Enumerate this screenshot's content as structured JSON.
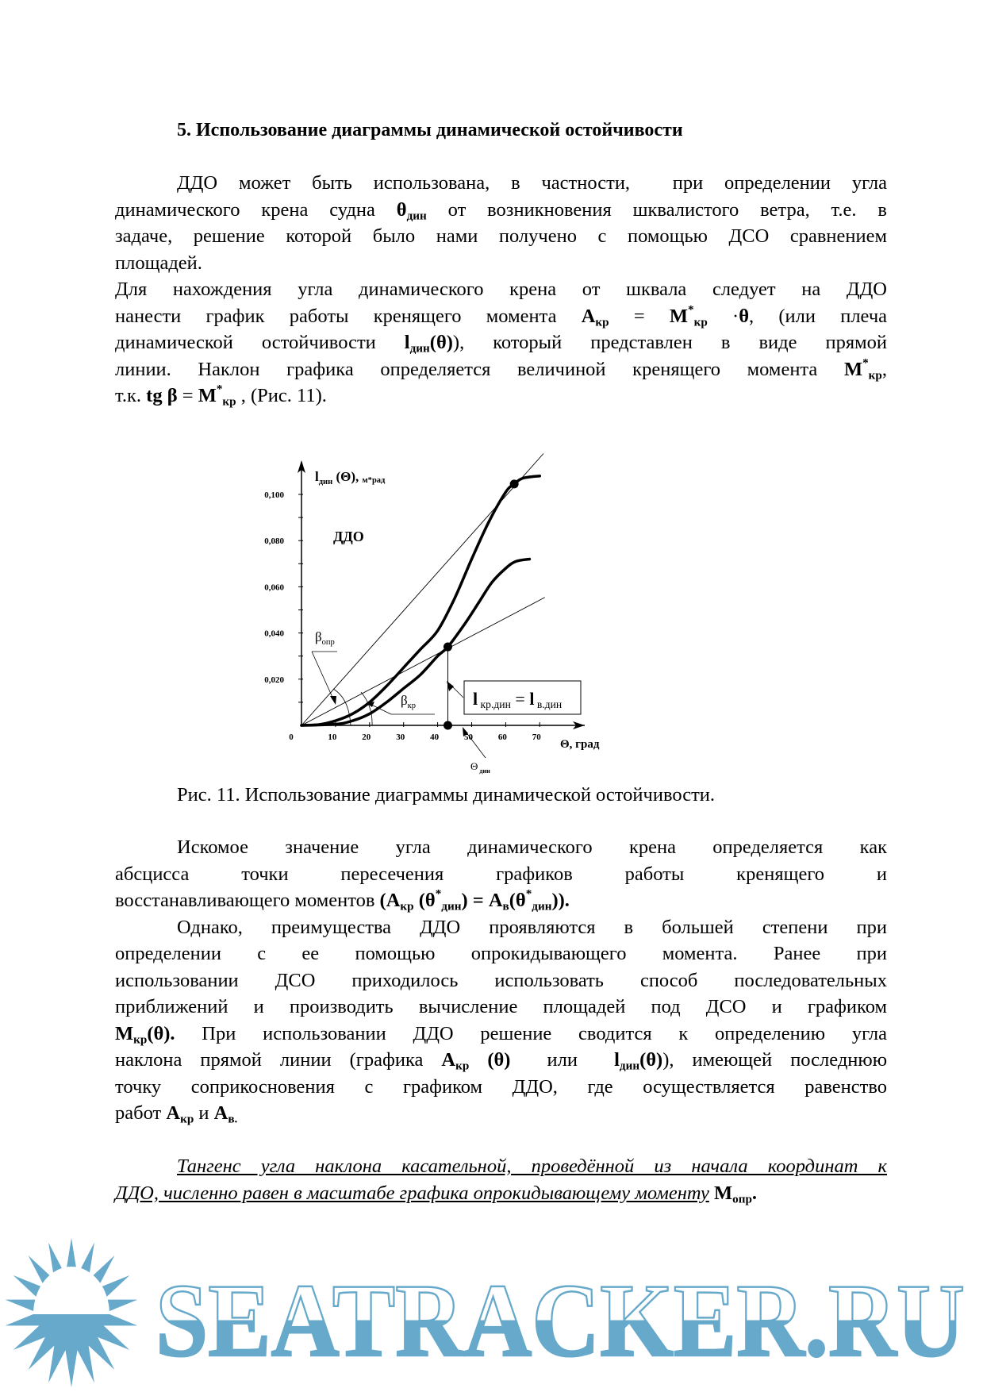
{
  "title": "5. Использование диаграммы динамической остойчивости",
  "paragraphs_top": [
    {
      "indent": true,
      "lines": [
        [
          "ДДО может быть использована, в частности,  при определении угла"
        ],
        [
          "динамического крена судна ",
          {
            "t": "θ",
            "f": "b"
          },
          {
            "t": "дин",
            "f": "b sub"
          },
          " от возникновения шквалистого ветра, т.е. в"
        ],
        [
          "задаче, решение которой было нами получено с помощью ДСО сравнением"
        ],
        [
          "площадей."
        ]
      ]
    },
    {
      "indent": false,
      "lines": [
        [
          "Для нахождения угла динамического крена от шквала следует на ДДО"
        ],
        [
          "нанести график работы кренящего момента ",
          {
            "t": "А",
            "f": "b"
          },
          {
            "t": "кр",
            "f": "b sub"
          },
          " = ",
          {
            "t": "М",
            "f": "b"
          },
          {
            "t": "*",
            "f": "b sup"
          },
          {
            "t": "кр",
            "f": "b sub"
          },
          " ·",
          {
            "t": "θ",
            "f": "b"
          },
          ", (или плеча"
        ],
        [
          "динамической остойчивости ",
          {
            "t": "l",
            "f": "b"
          },
          {
            "t": "дин",
            "f": "b sub"
          },
          {
            "t": "(θ)",
            "f": "b"
          },
          "), который представлен в виде прямой"
        ],
        [
          "линии. Наклон графика определяется величиной кренящего момента ",
          {
            "t": "М",
            "f": "b"
          },
          {
            "t": "*",
            "f": "b sup"
          },
          {
            "t": "кр",
            "f": "b sub"
          },
          ","
        ],
        [
          "т.к. ",
          {
            "t": "tg β",
            "f": "b"
          },
          " = ",
          {
            "t": "М",
            "f": "b"
          },
          {
            "t": "*",
            "f": "b sup"
          },
          {
            "t": "кр",
            "f": "b sub"
          },
          " , (Рис. 11)."
        ]
      ]
    }
  ],
  "caption": "Рис. 11.  Использование диаграммы динамической остойчивости.",
  "paragraphs_bottom": [
    {
      "indent": true,
      "lines": [
        [
          "Искомое значение угла динамического крена определяется как"
        ],
        [
          "абсцисса точки пересечения графиков работы кренящего и"
        ],
        [
          "восстанавливающего моментов ",
          {
            "t": "(А",
            "f": "b"
          },
          {
            "t": "кр",
            "f": "b sub"
          },
          {
            "t": " (θ",
            "f": "b"
          },
          {
            "t": "*",
            "f": "b sup"
          },
          {
            "t": "дин",
            "f": "b sub"
          },
          {
            "t": ") = А",
            "f": "b"
          },
          {
            "t": "в",
            "f": "b sub"
          },
          {
            "t": "(θ",
            "f": "b"
          },
          {
            "t": "*",
            "f": "b sup"
          },
          {
            "t": "дин",
            "f": "b sub"
          },
          {
            "t": ")).",
            "f": "b"
          }
        ]
      ]
    },
    {
      "indent": true,
      "lines": [
        [
          "Однако, преимущества ДДО проявляются в большей степени при"
        ],
        [
          "определении с ее помощью опрокидывающего момента. Ранее при"
        ],
        [
          "использовании ДСО приходилось использовать способ последовательных"
        ],
        [
          "приближений и производить вычисление площадей под ДСО и графиком"
        ],
        [
          {
            "t": "М",
            "f": "b"
          },
          {
            "t": "кр",
            "f": "b sub"
          },
          {
            "t": "(θ).",
            "f": "b"
          },
          " При использовании ДДО решение сводится к определению угла"
        ],
        [
          "наклона прямой линии (графика ",
          {
            "t": "А",
            "f": "b"
          },
          {
            "t": "кр",
            "f": "b sub"
          },
          {
            "t": " (θ)",
            "f": "b"
          },
          "  или  ",
          {
            "t": "l",
            "f": "b"
          },
          {
            "t": "дин",
            "f": "b sub"
          },
          {
            "t": "(θ)",
            "f": "b"
          },
          "), имеющей последнюю"
        ],
        [
          "точку соприкосновения с графиком ДДО, где осуществляется равенство"
        ],
        [
          "работ ",
          {
            "t": "А",
            "f": "b"
          },
          {
            "t": "кр",
            "f": "b sub"
          },
          " и ",
          {
            "t": "А",
            "f": "b"
          },
          {
            "t": "в.",
            "f": "b sub"
          }
        ]
      ]
    },
    {
      "indent": true,
      "gap": true,
      "lines": [
        [
          {
            "t": "Тангенс угла наклона касательной, проведённой из начала координат к",
            "f": "i u"
          }
        ],
        [
          {
            "t": "ДДО, численно равен в масштабе графика опрокидывающему моменту",
            "f": "i u"
          },
          " ",
          {
            "t": "М",
            "f": "b"
          },
          {
            "t": "опр",
            "f": "b sub"
          },
          {
            "t": ".",
            "f": "b"
          }
        ]
      ]
    }
  ],
  "chart_data": {
    "type": "line",
    "ylabel_main": "l",
    "ylabel_sub": "дин",
    "ylabel_rest": " (Θ), ",
    "ylabel_unit": "м*рад",
    "xlabel": "Θ, град",
    "curve_label": "ДДО",
    "x_ticks": [
      0,
      10,
      20,
      30,
      40,
      50,
      60,
      70
    ],
    "y_ticks": [
      "0,020",
      "0,040",
      "0,060",
      "0,080",
      "0,100"
    ],
    "y_tick_values": [
      0.02,
      0.04,
      0.06,
      0.08,
      0.1
    ],
    "xlim": [
      0,
      80
    ],
    "ylim": [
      0,
      0.115
    ],
    "series": [
      {
        "x": [
          0,
          5,
          10,
          15,
          20,
          25,
          30,
          35,
          40,
          45,
          50,
          55,
          60,
          62.5,
          65,
          70
        ],
        "y": [
          0,
          0.0003,
          0.002,
          0.005,
          0.01,
          0.017,
          0.025,
          0.033,
          0.041,
          0.055,
          0.072,
          0.088,
          0.101,
          0.1045,
          0.107,
          0.108
        ]
      },
      {
        "x": [
          0,
          10,
          15,
          20,
          25,
          30,
          35,
          40,
          43,
          48,
          52,
          56,
          60,
          63,
          67
        ],
        "y": [
          0,
          0.0005,
          0.002,
          0.005,
          0.01,
          0.016,
          0.022,
          0.03,
          0.034,
          0.044,
          0.053,
          0.062,
          0.068,
          0.071,
          0.072
        ]
      }
    ],
    "lines": [
      {
        "x": [
          0,
          71.1
        ],
        "y": [
          0,
          0.1177
        ]
      },
      {
        "x": [
          0,
          71.5
        ],
        "y": [
          0,
          0.0554
        ]
      }
    ],
    "points": [
      {
        "x": 62.5,
        "y": 0.1045
      },
      {
        "x": 43,
        "y": 0.034
      },
      {
        "x": 43,
        "y": 0
      }
    ],
    "annotations": {
      "beta_opr": {
        "main": "β",
        "sub": "опр"
      },
      "beta_kr": {
        "main": "β",
        "sub": "кр"
      },
      "theta_din": {
        "main": "Θ",
        "sub": " дин"
      },
      "equality": {
        "l1": "l",
        "s1": " кр.дин",
        "eq": " = ",
        "l2": "l",
        "s2": " в.дин"
      }
    }
  },
  "watermark": {
    "text": "SEATRACKER.RU",
    "color": "#66a9cb"
  }
}
